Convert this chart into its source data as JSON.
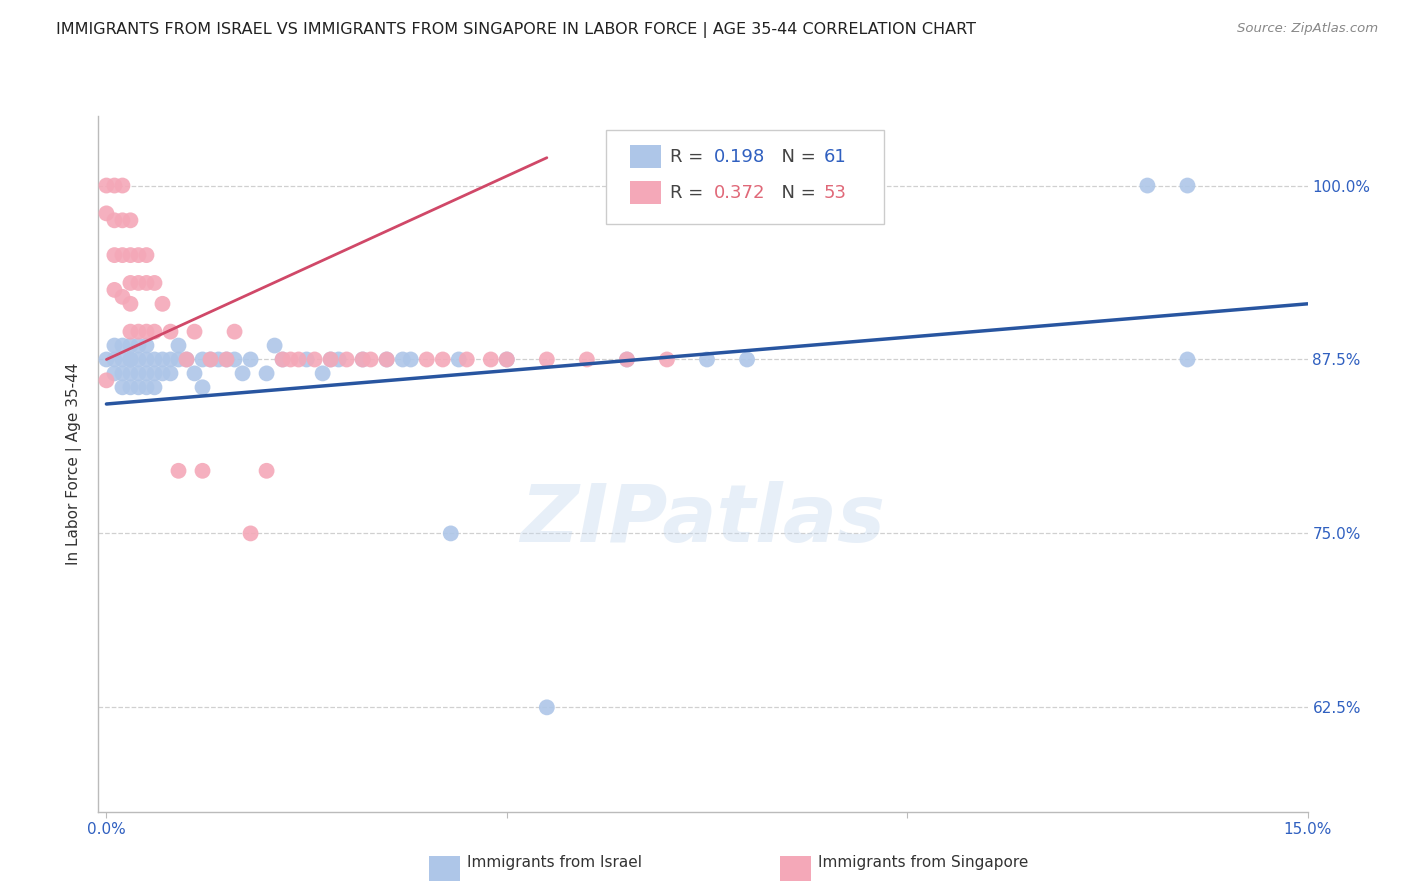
{
  "title": "IMMIGRANTS FROM ISRAEL VS IMMIGRANTS FROM SINGAPORE IN LABOR FORCE | AGE 35-44 CORRELATION CHART",
  "source": "Source: ZipAtlas.com",
  "ylabel_label": "In Labor Force | Age 35-44",
  "xlim": [
    -0.001,
    0.15
  ],
  "ylim": [
    0.55,
    1.05
  ],
  "xtick_positions": [
    0.0,
    0.05,
    0.1,
    0.15
  ],
  "xtick_labels": [
    "0.0%",
    "",
    "",
    "15.0%"
  ],
  "ytick_positions": [
    0.625,
    0.75,
    0.875,
    1.0
  ],
  "ytick_labels": [
    "62.5%",
    "75.0%",
    "87.5%",
    "100.0%"
  ],
  "israel_R": 0.198,
  "israel_N": 61,
  "singapore_R": 0.372,
  "singapore_N": 53,
  "israel_color": "#aec6e8",
  "singapore_color": "#f4a8b8",
  "israel_line_color": "#2855a0",
  "singapore_line_color": "#d04868",
  "title_fontsize": 11.5,
  "axis_label_fontsize": 11,
  "tick_fontsize": 11,
  "legend_fontsize": 13,
  "watermark": "ZIPatlas",
  "israel_line_x0": 0.0,
  "israel_line_y0": 0.843,
  "israel_line_x1": 0.15,
  "israel_line_y1": 0.915,
  "singapore_line_x0": 0.0,
  "singapore_line_y0": 0.875,
  "singapore_line_x1": 0.055,
  "singapore_line_y1": 1.02,
  "israel_x": [
    0.0,
    0.001,
    0.001,
    0.001,
    0.002,
    0.002,
    0.002,
    0.002,
    0.003,
    0.003,
    0.003,
    0.003,
    0.003,
    0.004,
    0.004,
    0.004,
    0.004,
    0.005,
    0.005,
    0.005,
    0.005,
    0.006,
    0.006,
    0.006,
    0.007,
    0.007,
    0.008,
    0.008,
    0.009,
    0.009,
    0.01,
    0.011,
    0.012,
    0.012,
    0.013,
    0.014,
    0.015,
    0.016,
    0.017,
    0.018,
    0.02,
    0.021,
    0.022,
    0.025,
    0.027,
    0.028,
    0.029,
    0.032,
    0.035,
    0.037,
    0.038,
    0.043,
    0.044,
    0.05,
    0.055,
    0.065,
    0.075,
    0.08,
    0.13,
    0.135,
    0.135
  ],
  "israel_y": [
    0.875,
    0.875,
    0.885,
    0.865,
    0.875,
    0.865,
    0.855,
    0.885,
    0.875,
    0.865,
    0.885,
    0.855,
    0.875,
    0.875,
    0.865,
    0.855,
    0.885,
    0.875,
    0.865,
    0.855,
    0.885,
    0.875,
    0.865,
    0.855,
    0.875,
    0.865,
    0.875,
    0.865,
    0.875,
    0.885,
    0.875,
    0.865,
    0.875,
    0.855,
    0.875,
    0.875,
    0.875,
    0.875,
    0.865,
    0.875,
    0.865,
    0.885,
    0.875,
    0.875,
    0.865,
    0.875,
    0.875,
    0.875,
    0.875,
    0.875,
    0.875,
    0.75,
    0.875,
    0.875,
    0.625,
    0.875,
    0.875,
    0.875,
    1.0,
    1.0,
    0.875
  ],
  "singapore_x": [
    0.0,
    0.0,
    0.0,
    0.001,
    0.001,
    0.001,
    0.001,
    0.002,
    0.002,
    0.002,
    0.002,
    0.003,
    0.003,
    0.003,
    0.003,
    0.003,
    0.004,
    0.004,
    0.004,
    0.005,
    0.005,
    0.005,
    0.006,
    0.006,
    0.007,
    0.008,
    0.009,
    0.01,
    0.011,
    0.012,
    0.013,
    0.015,
    0.016,
    0.018,
    0.02,
    0.022,
    0.023,
    0.024,
    0.026,
    0.028,
    0.03,
    0.032,
    0.033,
    0.035,
    0.04,
    0.042,
    0.045,
    0.048,
    0.05,
    0.055,
    0.06,
    0.065,
    0.07
  ],
  "singapore_y": [
    1.0,
    0.98,
    0.86,
    1.0,
    0.975,
    0.95,
    0.925,
    1.0,
    0.975,
    0.95,
    0.92,
    0.975,
    0.95,
    0.93,
    0.915,
    0.895,
    0.95,
    0.93,
    0.895,
    0.95,
    0.93,
    0.895,
    0.93,
    0.895,
    0.915,
    0.895,
    0.795,
    0.875,
    0.895,
    0.795,
    0.875,
    0.875,
    0.895,
    0.75,
    0.795,
    0.875,
    0.875,
    0.875,
    0.875,
    0.875,
    0.875,
    0.875,
    0.875,
    0.875,
    0.875,
    0.875,
    0.875,
    0.875,
    0.875,
    0.875,
    0.875,
    0.875,
    0.875
  ],
  "background_color": "#ffffff",
  "grid_color": "#d0d0d0",
  "tick_color": "#3060c0",
  "spine_color": "#bbbbbb"
}
